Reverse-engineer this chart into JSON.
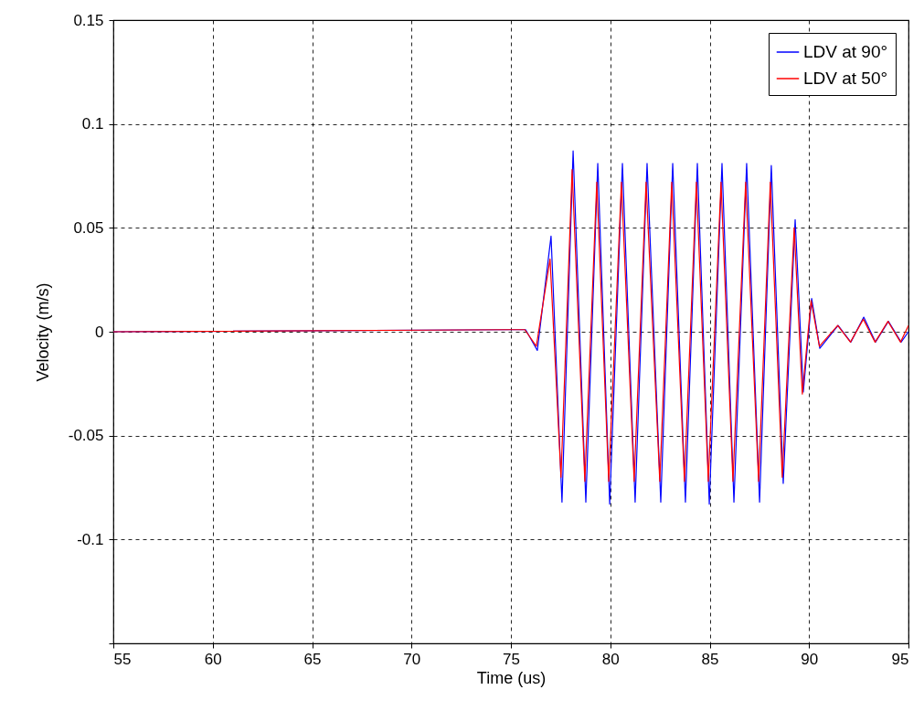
{
  "chart_data": {
    "type": "line",
    "xlabel": "Time (us)",
    "ylabel": "Velocity (m/s)",
    "xlim": [
      55,
      95
    ],
    "ylim": [
      -0.15,
      0.15
    ],
    "xticks": [
      55,
      60,
      65,
      70,
      75,
      80,
      85,
      90,
      95
    ],
    "yticks": [
      {
        "value": -0.15,
        "label": null
      },
      -0.1,
      -0.05,
      0,
      0.05,
      0.1,
      0.15
    ],
    "grid": true,
    "legend": "top right",
    "marker": "none",
    "line_style": "solid",
    "series": [
      {
        "name": "LDV at 90°",
        "color": "#0000ff",
        "x": [
          55,
          74.95,
          75.74,
          76.33,
          77.02,
          77.57,
          78.13,
          78.77,
          79.37,
          79.97,
          80.61,
          81.25,
          81.85,
          82.54,
          83.14,
          83.78,
          84.38,
          84.98,
          85.62,
          86.22,
          86.86,
          87.51,
          88.1,
          88.7,
          89.3,
          89.71,
          90.13,
          90.54,
          91.46,
          92.1,
          92.75,
          93.34,
          93.99,
          94.63,
          95
        ],
        "values": [
          0,
          0.001,
          0.001,
          -0.009,
          0.046,
          -0.082,
          0.087,
          -0.082,
          0.081,
          -0.083,
          0.081,
          -0.082,
          0.081,
          -0.082,
          0.081,
          -0.082,
          0.081,
          -0.083,
          0.081,
          -0.082,
          0.081,
          -0.082,
          0.08,
          -0.073,
          0.054,
          -0.029,
          0.016,
          -0.008,
          0.003,
          -0.005,
          0.007,
          -0.005,
          0.005,
          -0.005,
          0
        ]
      },
      {
        "name": "LDV at 50°",
        "color": "#ff0000",
        "x": [
          55,
          74.95,
          75.7,
          76.28,
          76.97,
          77.52,
          78.08,
          78.72,
          79.32,
          79.92,
          80.56,
          81.2,
          81.8,
          82.49,
          83.09,
          83.73,
          84.33,
          84.93,
          85.57,
          86.17,
          86.81,
          87.46,
          88.05,
          88.65,
          89.25,
          89.66,
          90.1,
          90.52,
          91.44,
          92.08,
          92.73,
          93.32,
          93.97,
          94.6,
          95
        ],
        "values": [
          0,
          0.001,
          0.001,
          -0.007,
          0.035,
          -0.07,
          0.078,
          -0.072,
          0.072,
          -0.072,
          0.072,
          -0.072,
          0.072,
          -0.072,
          0.072,
          -0.072,
          0.072,
          -0.072,
          0.072,
          -0.072,
          0.072,
          -0.072,
          0.072,
          -0.07,
          0.05,
          -0.03,
          0.015,
          -0.007,
          0.003,
          -0.005,
          0.006,
          -0.005,
          0.005,
          -0.005,
          0.003
        ]
      }
    ]
  }
}
